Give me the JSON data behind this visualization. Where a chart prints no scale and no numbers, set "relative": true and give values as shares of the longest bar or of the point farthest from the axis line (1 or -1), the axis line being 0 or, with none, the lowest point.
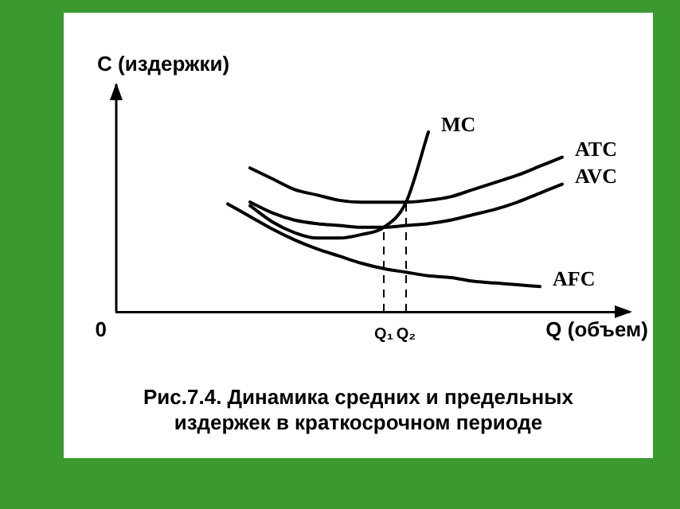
{
  "chart_data": {
    "type": "line",
    "title": "Рис.7.4. Динамика средних и предельных издержек в краткосрочном периоде",
    "xlabel": "Q (объем)",
    "ylabel": "C (издержки)",
    "relative": true,
    "line_style": "solid",
    "marker": "none",
    "categories": [
      null,
      null,
      null,
      null,
      null,
      null,
      null,
      null,
      null,
      null,
      null,
      null,
      "Q₁",
      "Q₂",
      null,
      null,
      null,
      null,
      null,
      null,
      null,
      null,
      null,
      null
    ],
    "series": [
      {
        "name": "MC",
        "color": "#000000",
        "values": [
          null,
          null,
          null,
          null,
          null,
          null,
          0.59,
          0.5,
          0.44,
          0.41,
          0.41,
          0.43,
          0.47,
          0.61,
          1.0,
          null,
          null,
          null,
          null,
          null,
          null,
          null,
          null,
          null
        ]
      },
      {
        "name": "ATC",
        "color": "#000000",
        "values": [
          null,
          null,
          null,
          null,
          null,
          null,
          0.8,
          0.74,
          0.68,
          0.65,
          0.62,
          0.61,
          0.61,
          0.61,
          0.62,
          0.64,
          0.68,
          0.72,
          0.76,
          0.81,
          0.86,
          null,
          null,
          null
        ]
      },
      {
        "name": "AVC",
        "color": "#000000",
        "values": [
          null,
          null,
          null,
          null,
          null,
          null,
          0.61,
          0.55,
          0.51,
          0.49,
          0.48,
          0.47,
          0.47,
          0.48,
          0.49,
          0.51,
          0.54,
          0.57,
          0.61,
          0.66,
          0.71,
          null,
          null,
          null
        ]
      },
      {
        "name": "AFC",
        "color": "#000000",
        "values": [
          null,
          null,
          null,
          null,
          null,
          0.6,
          0.53,
          0.46,
          0.4,
          0.35,
          0.31,
          0.27,
          0.24,
          0.22,
          0.2,
          0.19,
          0.17,
          0.16,
          0.15,
          0.14,
          null,
          null,
          null,
          null
        ]
      }
    ],
    "ref_lines": [
      {
        "axis": "x",
        "value": "Q₁",
        "line_style": "dashed",
        "color": "#000000"
      },
      {
        "axis": "x",
        "value": "Q₂",
        "line_style": "dashed",
        "color": "#000000"
      }
    ],
    "annotations": [
      "0"
    ]
  }
}
